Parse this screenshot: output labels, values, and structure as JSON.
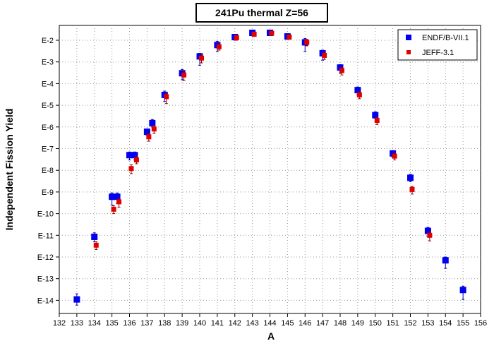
{
  "chart_data": {
    "type": "scatter",
    "title": "241Pu thermal Z=56",
    "xlabel": "A",
    "ylabel": "Independent Fission Yield",
    "y_scale": "log",
    "xlim": [
      132,
      156
    ],
    "ylim": [
      1e-15,
      0.1
    ],
    "x_ticks": [
      "132",
      "133",
      "134",
      "135",
      "136",
      "137",
      "138",
      "139",
      "140",
      "141",
      "142",
      "143",
      "144",
      "145",
      "146",
      "147",
      "148",
      "149",
      "150",
      "151",
      "152",
      "153",
      "154",
      "155",
      "156"
    ],
    "y_ticks": [
      {
        "label": "E-2",
        "value": 0.01
      },
      {
        "label": "E-3",
        "value": 0.001
      },
      {
        "label": "E-4",
        "value": 0.0001
      },
      {
        "label": "E-5",
        "value": 1e-05
      },
      {
        "label": "E-6",
        "value": 1e-06
      },
      {
        "label": "E-7",
        "value": 1e-07
      },
      {
        "label": "E-8",
        "value": 1e-08
      },
      {
        "label": "E-9",
        "value": 1e-09
      },
      {
        "label": "E-10",
        "value": 1e-10
      },
      {
        "label": "E-11",
        "value": 1e-11
      },
      {
        "label": "E-12",
        "value": 1e-12
      },
      {
        "label": "E-13",
        "value": 1e-13
      },
      {
        "label": "E-14",
        "value": 1e-14
      }
    ],
    "grid": true,
    "legend_position": "top-right",
    "series": [
      {
        "name": "ENDF/B-VII.1",
        "color": "#0000ee",
        "marker": "square",
        "points": [
          {
            "x": 133,
            "y": 1.1e-14,
            "err_lo": 6e-15,
            "err_hi": 2e-14
          },
          {
            "x": 134,
            "y": 8.5e-12,
            "err_lo": 5e-12,
            "err_hi": 1.3e-11
          },
          {
            "x": 135,
            "y": 6e-10,
            "err_lo": 2.5e-10,
            "err_hi": 9e-10
          },
          {
            "x": 135.3,
            "y": 6e-10,
            "err_lo": 3e-10,
            "err_hi": 9e-10
          },
          {
            "x": 136,
            "y": 5e-08,
            "err_lo": 3e-08,
            "err_hi": 7e-08
          },
          {
            "x": 136.3,
            "y": 5e-08,
            "err_lo": 3e-08,
            "err_hi": 7e-08
          },
          {
            "x": 137,
            "y": 6e-07,
            "err_lo": 4e-07,
            "err_hi": 8e-07
          },
          {
            "x": 137.3,
            "y": 1.5e-06,
            "err_lo": 1e-06,
            "err_hi": 2.2e-06
          },
          {
            "x": 138,
            "y": 3e-05,
            "err_lo": 1.5e-05,
            "err_hi": 4.5e-05
          },
          {
            "x": 139,
            "y": 0.0003,
            "err_lo": 0.00015,
            "err_hi": 0.00045
          },
          {
            "x": 140,
            "y": 0.0018,
            "err_lo": 0.0007,
            "err_hi": 0.0025
          },
          {
            "x": 141,
            "y": 0.006,
            "err_lo": 0.003,
            "err_hi": 0.009
          },
          {
            "x": 142,
            "y": 0.014,
            "err_lo": 0.01,
            "err_hi": 0.018
          },
          {
            "x": 143,
            "y": 0.022,
            "err_lo": 0.018,
            "err_hi": 0.026
          },
          {
            "x": 144,
            "y": 0.022,
            "err_lo": 0.018,
            "err_hi": 0.026
          },
          {
            "x": 145,
            "y": 0.015,
            "err_lo": 0.011,
            "err_hi": 0.02
          },
          {
            "x": 146,
            "y": 0.008,
            "err_lo": 0.003,
            "err_hi": 0.012
          },
          {
            "x": 147,
            "y": 0.0025,
            "err_lo": 0.0012,
            "err_hi": 0.0035
          },
          {
            "x": 148,
            "y": 0.00055,
            "err_lo": 0.0003,
            "err_hi": 0.00075
          },
          {
            "x": 149,
            "y": 5e-05,
            "err_lo": 3e-05,
            "err_hi": 7e-05
          },
          {
            "x": 150,
            "y": 3.5e-06,
            "err_lo": 2.5e-06,
            "err_hi": 5e-06
          },
          {
            "x": 151,
            "y": 6e-08,
            "err_lo": 4e-08,
            "err_hi": 8e-08
          },
          {
            "x": 152,
            "y": 4.5e-09,
            "err_lo": 3e-09,
            "err_hi": 6.5e-09
          },
          {
            "x": 153,
            "y": 1.6e-11,
            "err_lo": 9e-12,
            "err_hi": 2.3e-11
          },
          {
            "x": 154,
            "y": 7e-13,
            "err_lo": 3e-13,
            "err_hi": 1e-12
          },
          {
            "x": 155,
            "y": 3e-14,
            "err_lo": 1.1e-14,
            "err_hi": 4.5e-14
          }
        ]
      },
      {
        "name": "JEFF-3.1",
        "color": "#e00000",
        "marker": "square",
        "points": [
          {
            "x": 134.1,
            "y": 3.5e-12,
            "err_lo": 2.2e-12,
            "err_hi": 5e-12
          },
          {
            "x": 135.1,
            "y": 1.6e-10,
            "err_lo": 1e-10,
            "err_hi": 2.3e-10
          },
          {
            "x": 135.4,
            "y": 3.5e-10,
            "err_lo": 2e-10,
            "err_hi": 5e-10
          },
          {
            "x": 136.1,
            "y": 1.2e-08,
            "err_lo": 7e-09,
            "err_hi": 1.8e-08
          },
          {
            "x": 136.4,
            "y": 3e-08,
            "err_lo": 2e-08,
            "err_hi": 4.5e-08
          },
          {
            "x": 137.1,
            "y": 3.5e-07,
            "err_lo": 2.2e-07,
            "err_hi": 5e-07
          },
          {
            "x": 137.4,
            "y": 8e-07,
            "err_lo": 5e-07,
            "err_hi": 1.2e-06
          },
          {
            "x": 138.1,
            "y": 2.5e-05,
            "err_lo": 1.2e-05,
            "err_hi": 3.5e-05
          },
          {
            "x": 139.1,
            "y": 0.00025,
            "err_lo": 0.00014,
            "err_hi": 0.00038
          },
          {
            "x": 140.1,
            "y": 0.0015,
            "err_lo": 0.0009,
            "err_hi": 0.0022
          },
          {
            "x": 141.1,
            "y": 0.005,
            "err_lo": 0.0035,
            "err_hi": 0.0075
          },
          {
            "x": 142.1,
            "y": 0.013,
            "err_lo": 0.01,
            "err_hi": 0.017
          },
          {
            "x": 143.1,
            "y": 0.019,
            "err_lo": 0.015,
            "err_hi": 0.023
          },
          {
            "x": 144.1,
            "y": 0.021,
            "err_lo": 0.017,
            "err_hi": 0.025
          },
          {
            "x": 145.1,
            "y": 0.014,
            "err_lo": 0.011,
            "err_hi": 0.018
          },
          {
            "x": 146.1,
            "y": 0.008,
            "err_lo": 0.0055,
            "err_hi": 0.011
          },
          {
            "x": 147.1,
            "y": 0.002,
            "err_lo": 0.0013,
            "err_hi": 0.0028
          },
          {
            "x": 148.1,
            "y": 0.0004,
            "err_lo": 0.00025,
            "err_hi": 0.00055
          },
          {
            "x": 149.1,
            "y": 3e-05,
            "err_lo": 2e-05,
            "err_hi": 4.2e-05
          },
          {
            "x": 150.1,
            "y": 2e-06,
            "err_lo": 1.3e-06,
            "err_hi": 2.8e-06
          },
          {
            "x": 151.1,
            "y": 4.5e-08,
            "err_lo": 3e-08,
            "err_hi": 6.5e-08
          },
          {
            "x": 152.1,
            "y": 1.3e-09,
            "err_lo": 8e-10,
            "err_hi": 1.8e-09
          },
          {
            "x": 153.1,
            "y": 1e-11,
            "err_lo": 5.5e-12,
            "err_hi": 1.5e-11
          }
        ]
      }
    ]
  }
}
